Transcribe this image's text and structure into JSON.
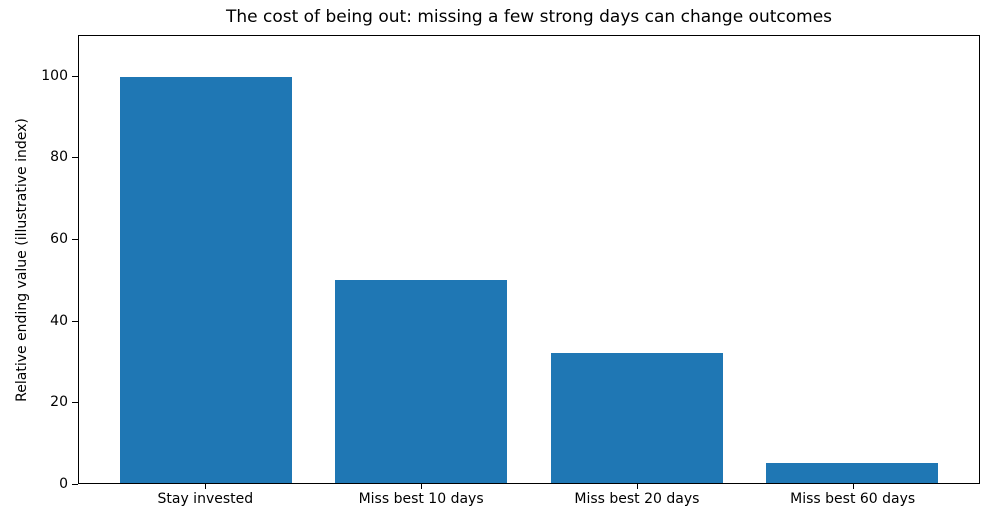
{
  "chart_data": {
    "type": "bar",
    "title": "The cost of being out: missing a few strong days can change outcomes",
    "xlabel": "",
    "ylabel": "Relative ending value (illustrative index)",
    "categories": [
      "Stay invested",
      "Miss best 10 days",
      "Miss best 20 days",
      "Miss best 60 days"
    ],
    "values": [
      100,
      50,
      32,
      5
    ],
    "yticks": [
      0,
      20,
      40,
      60,
      80,
      100
    ],
    "ylim": [
      0,
      110
    ],
    "bar_width_fraction": 0.8,
    "x_margin_fraction": 0.05,
    "grid": false,
    "legend": null,
    "colors": {
      "bar": "#1f77b4",
      "axis": "#000000",
      "background": "#ffffff"
    }
  }
}
